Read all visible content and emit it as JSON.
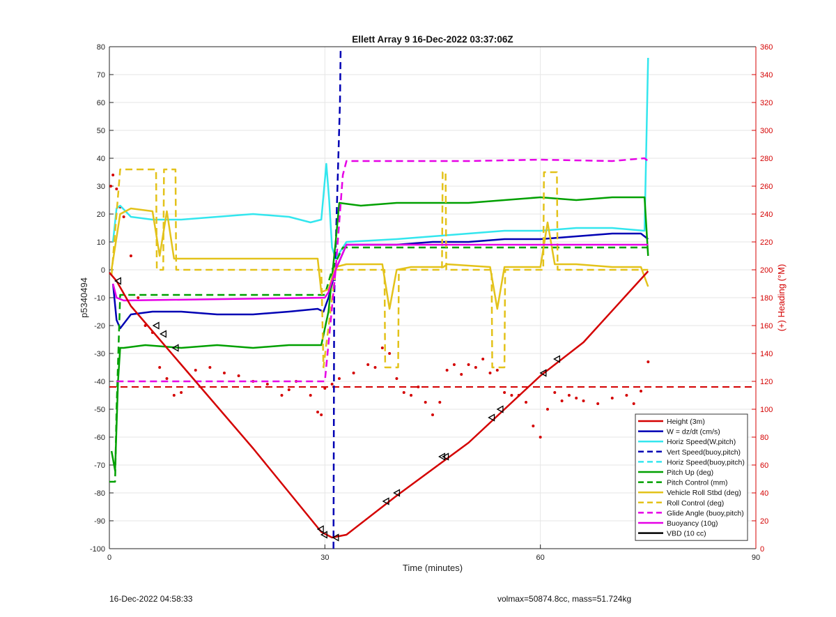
{
  "footer": {
    "timestamp": "16-Dec-2022 04:58:33",
    "summary": "volmax=50874.8cc, mass=51.724kg"
  },
  "chart_data": {
    "type": "line",
    "title": "Ellett Array 9 16-Dec-2022 03:37:06Z",
    "xlabel": "Time (minutes)",
    "ylabel": "p5340494",
    "y2label": "(+) Heading (°M)",
    "xlim": [
      0,
      90
    ],
    "ylim": [
      -100,
      80
    ],
    "y2lim": [
      0,
      360
    ],
    "x_ticks": [
      0,
      30,
      60,
      90
    ],
    "y_ticks": [
      -100,
      -90,
      -80,
      -70,
      -60,
      -50,
      -40,
      -30,
      -20,
      -10,
      0,
      10,
      20,
      30,
      40,
      50,
      60,
      70,
      80
    ],
    "y2_ticks": [
      0,
      20,
      40,
      60,
      80,
      100,
      120,
      140,
      160,
      180,
      200,
      220,
      240,
      260,
      280,
      300,
      320,
      340,
      360
    ],
    "grid": true,
    "legend_position": "bottom-right",
    "colors": {
      "red": "#d40000",
      "blue": "#0000b4",
      "cyan": "#33e6ee",
      "green": "#00a000",
      "yellow": "#e3c21a",
      "magenta": "#e600e6",
      "black": "#000000",
      "heading_axis": "#d40000"
    },
    "series": [
      {
        "name": "Height (3m)",
        "color": "red",
        "style": "solid",
        "x": [
          0,
          1,
          3,
          10,
          20,
          29.5,
          31,
          33,
          40,
          50,
          60,
          66,
          75
        ],
        "y": [
          -1,
          -4,
          -13,
          -34,
          -64,
          -94,
          -96,
          -95,
          -81,
          -62,
          -38,
          -26,
          -0.5
        ]
      },
      {
        "name": "W = dz/dt (cm/s)",
        "color": "blue",
        "style": "solid",
        "x": [
          0.5,
          1,
          1.5,
          3,
          6,
          10,
          15,
          20,
          25,
          29,
          29.8,
          30.5,
          31.5,
          33,
          40,
          45,
          50,
          55,
          60,
          65,
          70,
          74,
          75
        ],
        "y": [
          -5,
          -18,
          -21,
          -16,
          -15,
          -15,
          -16,
          -16,
          -15,
          -14,
          -15,
          -10,
          0,
          9,
          9,
          10,
          10,
          11,
          11,
          12,
          13,
          13,
          11
        ]
      },
      {
        "name": "Horiz Speed(W,pitch)",
        "color": "cyan",
        "style": "solid",
        "x": [
          0.5,
          1,
          1.5,
          3,
          6,
          10,
          15,
          20,
          25,
          28,
          29.5,
          30.2,
          30.6,
          31,
          31.5,
          33,
          40,
          45,
          50,
          55,
          60,
          65,
          70,
          74.5,
          75
        ],
        "y": [
          10,
          22,
          23,
          19,
          18,
          18,
          19,
          20,
          19,
          17,
          18,
          38,
          25,
          8,
          4,
          10,
          11,
          12,
          13,
          14,
          14,
          15,
          15,
          14,
          76
        ]
      },
      {
        "name": "Vert Speed(buoy,pitch)",
        "color": "blue",
        "style": "dashed",
        "x": [
          31.2,
          31.3,
          31.3,
          32.1,
          32.2
        ],
        "y": [
          -100,
          -10,
          -10,
          60,
          80
        ]
      },
      {
        "name": "Horiz Speed(buoy,pitch)",
        "color": "cyan",
        "style": "dashed",
        "x": [],
        "y": []
      },
      {
        "name": "Pitch Up (deg)",
        "color": "green",
        "style": "solid",
        "x": [
          0.3,
          0.8,
          1.2,
          1.5,
          2,
          5,
          10,
          15,
          20,
          25,
          29.5,
          30.5,
          31.5,
          32,
          35,
          40,
          45,
          50,
          55,
          60,
          65,
          70,
          74.5,
          75
        ],
        "y": [
          -65,
          -72,
          -40,
          -28,
          -28,
          -27,
          -28,
          -27,
          -28,
          -27,
          -27,
          -15,
          10,
          24,
          23,
          24,
          24,
          24,
          25,
          26,
          25,
          26,
          26,
          5
        ]
      },
      {
        "name": "Pitch Control (mm)",
        "color": "green",
        "style": "dashed",
        "x": [
          0,
          0.8,
          1,
          1.5,
          30,
          31,
          32.5,
          75
        ],
        "y": [
          -76,
          -76,
          -50,
          -9,
          -9,
          0,
          8,
          8
        ]
      },
      {
        "name": "Vehicle Roll Stbd (deg)",
        "color": "yellow",
        "style": "solid",
        "x": [
          0.3,
          1.5,
          3,
          6,
          7,
          8,
          9,
          10,
          20,
          29,
          29.5,
          30.5,
          31.5,
          33,
          38,
          39,
          40,
          42,
          46.5,
          47,
          53,
          54,
          55,
          60,
          61,
          62,
          65,
          70,
          74,
          75
        ],
        "y": [
          0,
          20,
          22,
          21,
          5,
          21,
          4,
          4,
          4,
          4,
          -8,
          -7,
          1,
          2,
          2,
          -14,
          0,
          1,
          1,
          2,
          1,
          -14,
          1,
          1,
          17,
          2,
          2,
          1,
          1,
          -6
        ]
      },
      {
        "name": "Roll Control (deg)",
        "color": "yellow",
        "style": "dashed",
        "x": [
          0.3,
          1.5,
          6.5,
          6.6,
          7.5,
          7.6,
          9.2,
          9.3,
          29.5,
          29.8,
          31.5,
          38.3,
          38.4,
          40.2,
          40.3,
          46.3,
          46.4,
          46.8,
          46.9,
          53.2,
          53.3,
          55,
          55.1,
          60.4,
          60.5,
          62.3,
          62.4,
          75
        ],
        "y": [
          -2,
          36,
          36,
          0,
          0,
          36,
          36,
          0,
          0,
          -35,
          0,
          0,
          -35,
          -35,
          0,
          0,
          35,
          35,
          0,
          0,
          -35,
          -35,
          0,
          0,
          35,
          35,
          0,
          0
        ]
      },
      {
        "name": "Glide Angle (buoy,pitch)",
        "color": "magenta",
        "style": "dashed",
        "x": [
          1,
          2,
          30,
          31.5,
          32.5,
          33,
          40,
          50,
          60,
          70,
          74.5,
          75
        ],
        "y": [
          -40,
          -40,
          -40,
          0,
          34,
          39,
          39,
          39,
          39.5,
          39,
          40,
          39
        ]
      },
      {
        "name": "Buoyancy (10g)",
        "color": "magenta",
        "style": "solid",
        "x": [
          0.5,
          1,
          2,
          30,
          30.5,
          31.5,
          33,
          40,
          50,
          60,
          70,
          75
        ],
        "y": [
          -5,
          -10,
          -11,
          -10,
          -8,
          0,
          9,
          9,
          9,
          9,
          9,
          9
        ]
      },
      {
        "name": "VBD (10 cc)",
        "color": "black",
        "style": "solid",
        "x": [
          0,
          0.3,
          1,
          1.2,
          30,
          31,
          32,
          33,
          75
        ],
        "y": [
          15,
          15,
          -2,
          -9,
          -9,
          0,
          5,
          10,
          10
        ]
      }
    ],
    "markers": {
      "shape": "triangle",
      "on": "Height (3m)",
      "x": [
        1.2,
        6.5,
        7.5,
        9.2,
        29.4,
        29.9,
        31.5,
        38.5,
        40,
        46.3,
        46.8,
        53.2,
        54.4,
        60.4,
        62.3
      ],
      "y": [
        -4,
        -20,
        -23,
        -28,
        -93,
        -95,
        -96,
        -83,
        -80,
        -67,
        -67,
        -53,
        -50,
        -37,
        -32
      ]
    },
    "heading_series": {
      "axis": "right",
      "color": "red",
      "style": "dotted",
      "x": [
        0.2,
        0.5,
        1,
        1.5,
        2,
        3,
        4,
        5,
        6,
        7,
        8,
        9,
        10,
        12,
        14,
        16,
        18,
        20,
        22,
        24,
        25,
        26,
        28,
        29,
        29.5,
        30,
        31,
        32,
        34,
        36,
        37,
        38,
        39,
        40,
        41,
        42,
        43,
        44,
        45,
        46,
        47,
        48,
        49,
        50,
        51,
        52,
        53,
        54,
        55,
        56,
        57,
        58,
        59,
        60,
        61,
        62,
        63,
        64,
        65,
        66,
        68,
        70,
        72,
        73,
        74,
        75
      ],
      "y": [
        260,
        268,
        258,
        245,
        238,
        210,
        180,
        160,
        155,
        130,
        122,
        110,
        112,
        128,
        130,
        126,
        124,
        120,
        118,
        110,
        114,
        120,
        110,
        98,
        96,
        115,
        118,
        122,
        126,
        132,
        130,
        144,
        140,
        122,
        112,
        110,
        116,
        105,
        96,
        105,
        128,
        132,
        125,
        132,
        130,
        136,
        126,
        128,
        112,
        110,
        110,
        105,
        88,
        80,
        100,
        112,
        106,
        110,
        108,
        106,
        104,
        108,
        110,
        104,
        113,
        134
      ]
    },
    "heading_reference": {
      "axis": "right",
      "color": "red",
      "style": "dashed",
      "value": 116
    }
  }
}
